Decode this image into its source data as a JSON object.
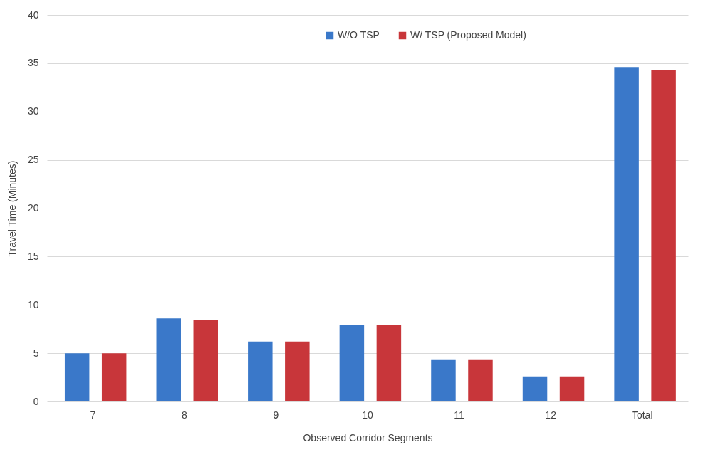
{
  "chart_data": {
    "type": "bar",
    "xlabel": "Observed Corridor Segments",
    "ylabel": "Travel Time (Minutes)",
    "categories": [
      "7",
      "8",
      "9",
      "10",
      "11",
      "12",
      "Total"
    ],
    "series": [
      {
        "name": "W/O TSP",
        "color": "#3a78c9",
        "values": [
          5.0,
          8.6,
          6.2,
          7.9,
          4.3,
          2.6,
          34.6
        ]
      },
      {
        "name": "W/ TSP (Proposed Model)",
        "color": "#c8363a",
        "values": [
          5.0,
          8.4,
          6.2,
          7.9,
          4.3,
          2.6,
          34.3
        ]
      }
    ],
    "ylim": [
      0,
      40
    ],
    "yticks": [
      0,
      5,
      10,
      15,
      20,
      25,
      30,
      35,
      40
    ],
    "grid": "y",
    "legend": "top"
  }
}
